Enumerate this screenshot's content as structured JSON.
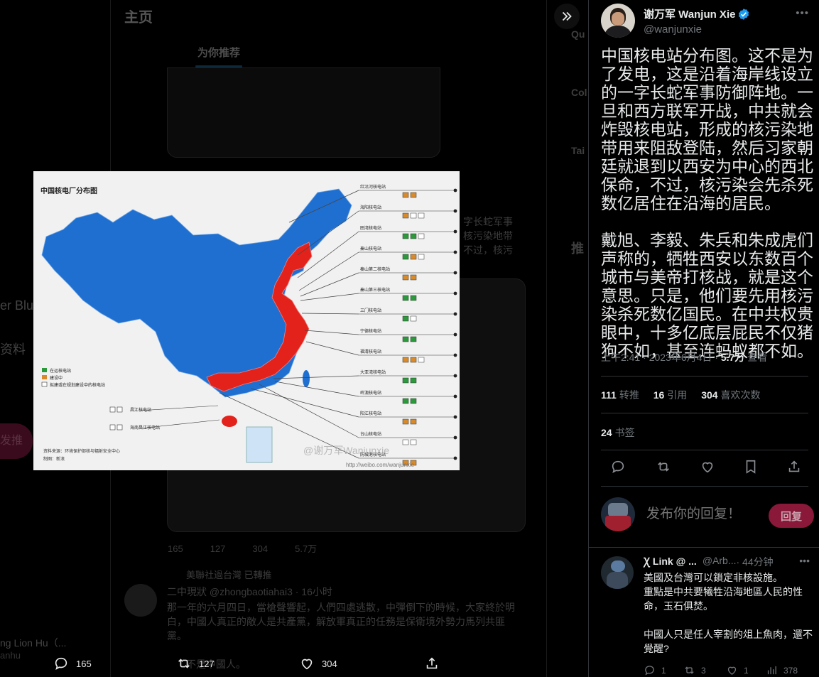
{
  "background": {
    "home_title": "主页",
    "tab_for_you": "为你推荐",
    "left_fragment_1": "er Blu",
    "left_fragment_2": "资料",
    "left_fragment_3": "发推",
    "left_bottom_name": "ng Lion Hu（...",
    "left_bottom_handle": "anhu",
    "right_fragment_1": "Qu",
    "right_fragment_2": "Col",
    "right_fragment_3": "Tai",
    "right_fragment_4": "推",
    "feed_text_1": "字长蛇军事",
    "feed_text_2": "核污染地带",
    "feed_text_3": "不过，核污",
    "feed_repost_line": "美聯社過台灣 已轉推",
    "feed_user": "二中現狀 @zhongbaotiahai3 · 16小时",
    "feed_body": "那一年的六月四日，當槍聲響起，人們四處逃散，中彈倒下的時候，大家終於明白，中國人真正的敵人是共產黨，解放軍真正的任務是保衛境外勢力馬列共匪黨。",
    "feed_body_2": "不是中國人。",
    "feed_counts": [
      "165",
      "127",
      "304",
      "5.7万"
    ]
  },
  "bottom_bar": {
    "reply_count": "165",
    "retweet_count": "127",
    "like_count": "304"
  },
  "media": {
    "map_title": "中国核电厂分布图",
    "legend": [
      "在运核电站",
      "建设中",
      "拟建或在规划建设中的核电站"
    ],
    "right_plants": [
      "红沿河核电站",
      "海阳核电站",
      "田湾核电站",
      "秦山核电站",
      "秦山第二核电站",
      "秦山第三核电站",
      "三门核电站",
      "宁德核电站",
      "福清核电站",
      "大亚湾核电站",
      "岭澳核电站",
      "阳江核电站",
      "台山核电站",
      "防城港核电站"
    ],
    "left_plants": [
      "昌江核电站",
      "海南昌江核电站"
    ],
    "source_note": "资料来源：环境保护部核与辐射安全中心",
    "source_note_2": "制图：新浪",
    "watermark": "@谢万军Wanjunxie",
    "url_watermark": "http://weibo.com/wanjunxie"
  },
  "tweet": {
    "display_name": "谢万军 Wanjun Xie",
    "handle": "@wanjunxie",
    "text": "中国核电站分布图。这不是为了发电，这是沿着海岸线设立的一字长蛇军事防御阵地。一旦和西方联军开战，中共就会炸毁核电站，形成的核污染地带用来阻敌登陆，然后习家朝廷就退到以西安为中心的西北保命，不过，核污染会先杀死数亿居住在沿海的居民。\n\n戴旭、李毅、朱兵和朱成虎们声称的，牺牲西安以东数百个城市与美帝打核战，就是这个意思。只是，他们要先用核污染杀死数亿国民。在中共权贵眼中，十多亿底层屁民不仅猪狗不如，甚至连蚂蚁都不如。",
    "time": "上午2:41 · 2023年6月4日 · ",
    "views": "5.7万",
    "views_label": " 查看",
    "retweets": "111",
    "retweets_label": "转推",
    "quotes": "16",
    "quotes_label": "引用",
    "likes": "304",
    "likes_label": "喜欢次数",
    "bookmarks": "24",
    "bookmarks_label": "书签"
  },
  "reply_composer": {
    "placeholder": "发布你的回复！",
    "button_label": "回复"
  },
  "reply": {
    "name": "Ꭓ Link @ ...",
    "handle": "@Arb...",
    "time": " · 44分钟",
    "text": "美國及台灣可以鎖定非核設施。\n重點是中共要犧牲沿海地區人民的性命，玉石俱焚。\n\n中國人只是任人宰割的俎上魚肉，還不覺醒?",
    "reply_count": "1",
    "retweet_count": "3",
    "like_count": "1",
    "view_count": "378"
  },
  "colors": {
    "accent": "#1d9bf0",
    "reply_button": "#8a1838",
    "map_blue": "#1f6fd1",
    "map_red": "#e3221b",
    "legend_green": "#2a9a3a",
    "legend_orange": "#d98a2b"
  }
}
